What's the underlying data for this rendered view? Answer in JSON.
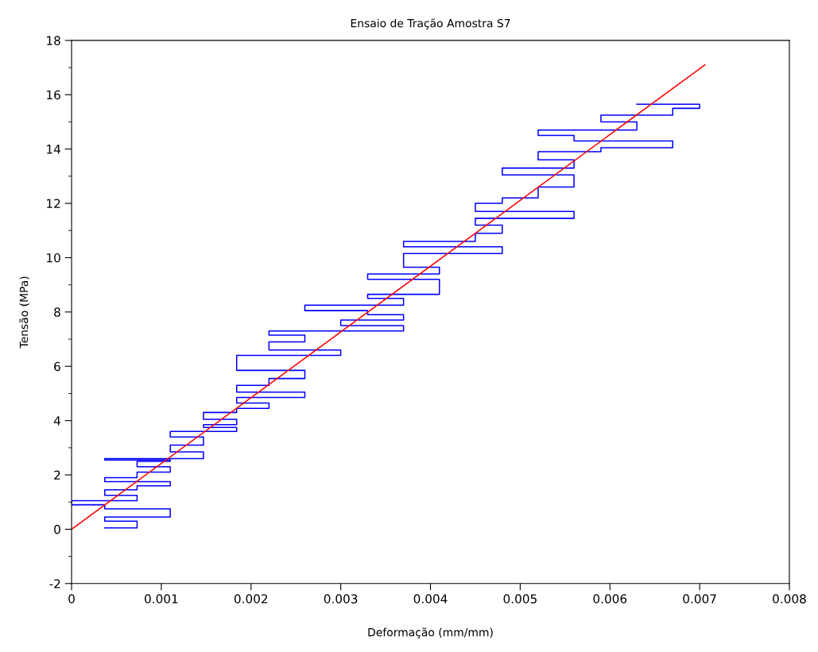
{
  "chart_data": {
    "type": "line",
    "title": "Ensaio de Tração Amostra S7",
    "xlabel": "Deformação (mm/mm)",
    "ylabel": "Tensão (MPa)",
    "xlim": [
      0,
      0.008
    ],
    "xticks": [
      0,
      0.001,
      0.002,
      0.003,
      0.004,
      0.005,
      0.006,
      0.007,
      0.008
    ],
    "ylim": [
      -2,
      18
    ],
    "yticks": [
      -2,
      0,
      2,
      4,
      6,
      8,
      10,
      12,
      14,
      16,
      18
    ],
    "grid": false,
    "marker": "none",
    "line_style": "solid",
    "series": [
      {
        "color": "#0000ff",
        "x": [
          0.00037,
          0.00073,
          0.00073,
          0.00037,
          0.00037,
          0.0011,
          0.0011,
          0.00037,
          0.00037,
          0.0,
          0.0,
          0.00073,
          0.00073,
          0.00037,
          0.00037,
          0.00073,
          0.00073,
          0.0011,
          0.0011,
          0.00037,
          0.00037,
          0.00073,
          0.00073,
          0.0011,
          0.0011,
          0.00073,
          0.00073,
          0.0011,
          0.0011,
          0.00037,
          0.00037,
          0.00147,
          0.00147,
          0.0011,
          0.0011,
          0.00147,
          0.00147,
          0.0011,
          0.0011,
          0.00184,
          0.00184,
          0.00147,
          0.00147,
          0.00184,
          0.00184,
          0.00147,
          0.00147,
          0.00184,
          0.00184,
          0.0022,
          0.0022,
          0.00184,
          0.00184,
          0.0026,
          0.0026,
          0.00184,
          0.00184,
          0.0022,
          0.0022,
          0.0026,
          0.0026,
          0.00184,
          0.00184,
          0.003,
          0.003,
          0.0022,
          0.0022,
          0.0026,
          0.0026,
          0.0022,
          0.0022,
          0.0037,
          0.0037,
          0.003,
          0.003,
          0.0037,
          0.0037,
          0.0033,
          0.0033,
          0.0026,
          0.0026,
          0.0037,
          0.0037,
          0.0033,
          0.0033,
          0.0041,
          0.0041,
          0.0033,
          0.0033,
          0.0041,
          0.0041,
          0.0037,
          0.0037,
          0.0048,
          0.0048,
          0.0037,
          0.0037,
          0.0045,
          0.0045,
          0.0048,
          0.0048,
          0.0045,
          0.0045,
          0.0056,
          0.0056,
          0.0045,
          0.0045,
          0.0048,
          0.0048,
          0.0052,
          0.0052,
          0.0056,
          0.0056,
          0.0048,
          0.0048,
          0.0056,
          0.0056,
          0.0052,
          0.0052,
          0.0059,
          0.0059,
          0.0067,
          0.0067,
          0.0056,
          0.0056,
          0.0052,
          0.0052,
          0.0063,
          0.0063,
          0.0059,
          0.0059,
          0.0067,
          0.0067,
          0.007,
          0.007,
          0.0063
        ],
        "values": [
          0.05,
          0.05,
          0.3,
          0.3,
          0.45,
          0.45,
          0.75,
          0.75,
          0.9,
          0.9,
          1.05,
          1.05,
          1.25,
          1.25,
          1.45,
          1.45,
          1.6,
          1.6,
          1.75,
          1.75,
          1.9,
          1.9,
          2.1,
          2.1,
          2.3,
          2.3,
          2.5,
          2.5,
          2.55,
          2.55,
          2.6,
          2.6,
          2.85,
          2.85,
          3.1,
          3.1,
          3.4,
          3.4,
          3.6,
          3.6,
          3.75,
          3.75,
          3.85,
          3.85,
          4.05,
          4.05,
          4.3,
          4.3,
          4.45,
          4.45,
          4.65,
          4.65,
          4.85,
          4.85,
          5.05,
          5.05,
          5.3,
          5.3,
          5.55,
          5.55,
          5.85,
          5.85,
          6.4,
          6.4,
          6.6,
          6.6,
          6.9,
          6.9,
          7.15,
          7.15,
          7.3,
          7.3,
          7.5,
          7.5,
          7.7,
          7.7,
          7.9,
          7.9,
          8.05,
          8.05,
          8.25,
          8.25,
          8.5,
          8.5,
          8.65,
          8.65,
          9.2,
          9.2,
          9.4,
          9.4,
          9.65,
          9.65,
          10.15,
          10.15,
          10.4,
          10.4,
          10.6,
          10.6,
          10.9,
          10.9,
          11.2,
          11.2,
          11.45,
          11.45,
          11.7,
          11.7,
          12.0,
          12.0,
          12.2,
          12.2,
          12.6,
          12.6,
          13.05,
          13.05,
          13.3,
          13.3,
          13.6,
          13.6,
          13.9,
          13.9,
          14.05,
          14.05,
          14.3,
          14.3,
          14.5,
          14.5,
          14.7,
          14.7,
          15.0,
          15.0,
          15.25,
          15.25,
          15.5,
          15.5,
          15.65,
          15.65
        ]
      },
      {
        "color": "#ff0000",
        "x": [
          0,
          0.00706
        ],
        "values": [
          0,
          17.1
        ]
      }
    ]
  }
}
